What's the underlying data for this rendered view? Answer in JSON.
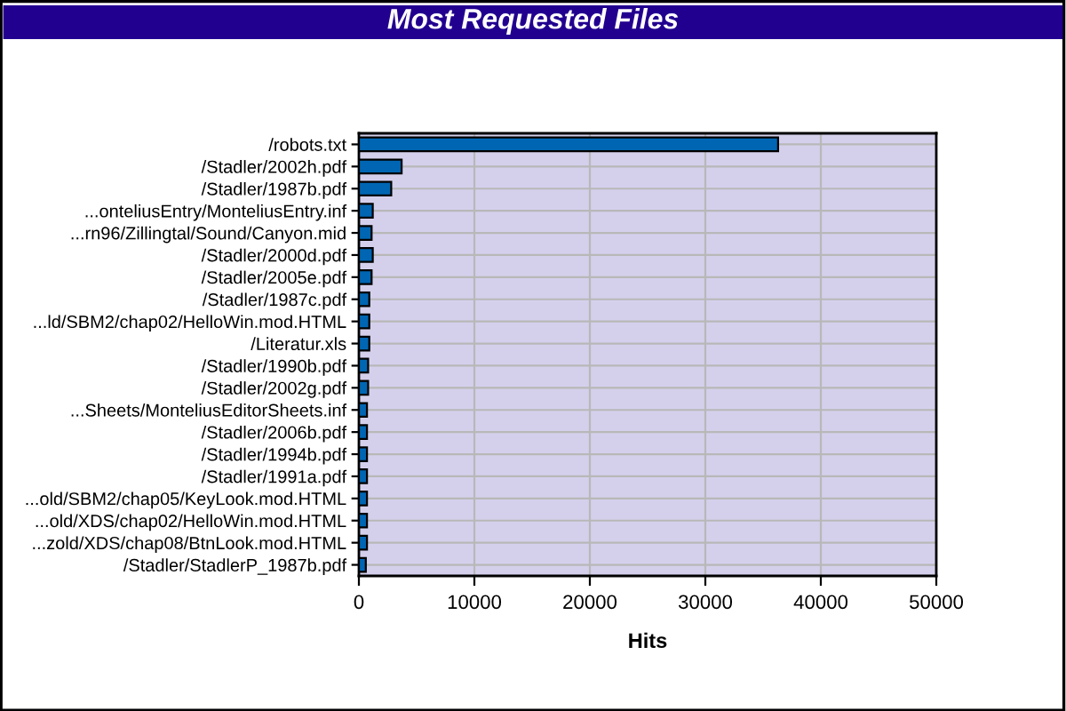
{
  "chart_data": {
    "type": "bar",
    "orientation": "horizontal",
    "title": "Most Requested Files",
    "xlabel": "Hits",
    "categories": [
      "/robots.txt",
      "/Stadler/2002h.pdf",
      "/Stadler/1987b.pdf",
      "...onteliusEntry/MonteliusEntry.inf",
      "...rn96/Zillingtal/Sound/Canyon.mid",
      "/Stadler/2000d.pdf",
      "/Stadler/2005e.pdf",
      "/Stadler/1987c.pdf",
      "...ld/SBM2/chap02/HelloWin.mod.HTML",
      "/Literatur.xls",
      "/Stadler/1990b.pdf",
      "/Stadler/2002g.pdf",
      "...Sheets/MonteliusEditorSheets.inf",
      "/Stadler/2006b.pdf",
      "/Stadler/1994b.pdf",
      "/Stadler/1991a.pdf",
      "...old/SBM2/chap05/KeyLook.mod.HTML",
      "...old/XDS/chap02/HelloWin.mod.HTML",
      "...zold/XDS/chap08/BtnLook.mod.HTML",
      "/Stadler/StadlerP_1987b.pdf"
    ],
    "values": [
      36300,
      3700,
      2800,
      1200,
      1100,
      1200,
      1100,
      900,
      900,
      900,
      800,
      800,
      700,
      700,
      700,
      700,
      700,
      700,
      700,
      600
    ],
    "color": "#0066b3",
    "xlim": [
      0,
      50000
    ],
    "xticks": [
      0,
      10000,
      20000,
      30000,
      40000,
      50000
    ],
    "grid": true,
    "legend": false
  }
}
